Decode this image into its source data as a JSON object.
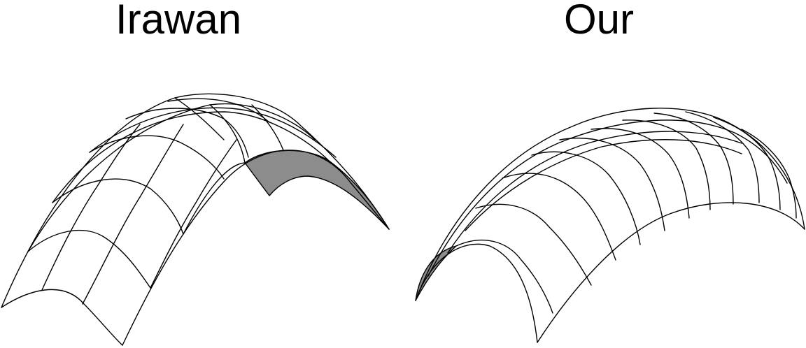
{
  "panels": [
    {
      "title": "Irawan"
    },
    {
      "title": "Our"
    }
  ],
  "colors": {
    "highlight_patch": "#8c8c8c",
    "line": "#000000",
    "background": "#ffffff"
  }
}
